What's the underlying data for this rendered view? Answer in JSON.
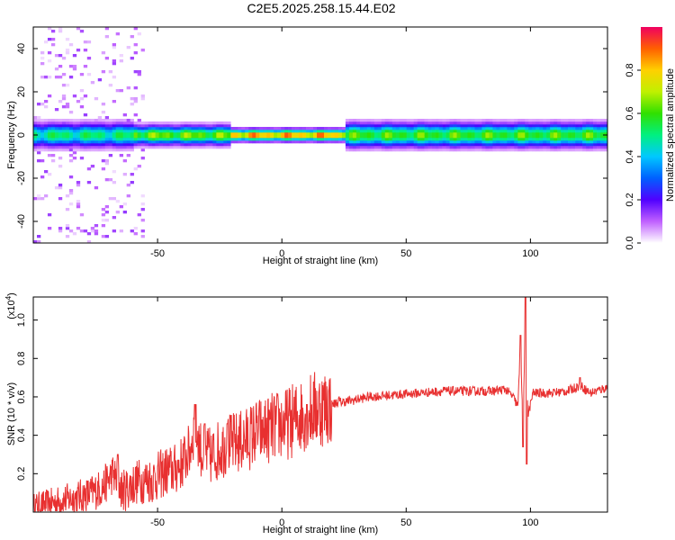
{
  "title": "C2E5.2025.258.15.44.E02",
  "chart_data": [
    {
      "type": "heatmap",
      "xlabel": "Height of straight line (km)",
      "ylabel": "Frequency (Hz)",
      "xlim": [
        -100,
        131
      ],
      "ylim": [
        -50,
        50
      ],
      "x_ticks": [
        "-50",
        "0",
        "50",
        "100"
      ],
      "y_ticks": [
        "-40",
        "-20",
        "0",
        "20",
        "40"
      ],
      "colorbar": {
        "label": "Normalized spectral amplitude",
        "range": [
          0,
          1
        ],
        "ticks": [
          "0.0",
          "0.2",
          "0.4",
          "0.6",
          "0.8"
        ],
        "colors": [
          "#ffffff",
          "#c060ff",
          "#5000ff",
          "#0060ff",
          "#00c8ff",
          "#00f080",
          "#30e000",
          "#c0f000",
          "#ffd000",
          "#ff6000",
          "#f00060"
        ]
      },
      "ridge": {
        "center_hz": 0,
        "segments": [
          {
            "x_start": -100,
            "x_end": -60,
            "half_width_hz": 5,
            "peak": 0.6
          },
          {
            "x_start": -60,
            "x_end": -20,
            "half_width_hz": 4,
            "peak": 0.75
          },
          {
            "x_start": -20,
            "x_end": 25,
            "half_width_hz": 2.5,
            "peak": 1.0
          },
          {
            "x_start": 25,
            "x_end": 131,
            "half_width_hz": 5,
            "peak": 0.7
          }
        ],
        "noise_region_x": [
          -100,
          -55
        ]
      }
    },
    {
      "type": "line",
      "xlabel": "Height of straight line (km)",
      "ylabel": "SNR (10 * v/v)",
      "y_scale_note": "(x10",
      "y_scale_exp": "4",
      "y_scale_close": ")",
      "xlim": [
        -100,
        131
      ],
      "ylim": [
        0,
        1.12
      ],
      "x_ticks": [
        "-50",
        "0",
        "50",
        "100"
      ],
      "y_ticks": [
        "0.2",
        "0.4",
        "0.6",
        "0.8",
        "1.0"
      ],
      "series": [
        {
          "color": "#e83030",
          "points": [
            [
              -100,
              0.03
            ],
            [
              -92,
              0.05
            ],
            [
              -85,
              0.07
            ],
            [
              -78,
              0.09
            ],
            [
              -72,
              0.13
            ],
            [
              -68,
              0.2
            ],
            [
              -64,
              0.11
            ],
            [
              -58,
              0.16
            ],
            [
              -52,
              0.17
            ],
            [
              -47,
              0.21
            ],
            [
              -43,
              0.22
            ],
            [
              -40,
              0.26
            ],
            [
              -37,
              0.32
            ],
            [
              -35,
              0.45
            ],
            [
              -32,
              0.3
            ],
            [
              -28,
              0.29
            ],
            [
              -25,
              0.33
            ],
            [
              -22,
              0.35
            ],
            [
              -18,
              0.36
            ],
            [
              -14,
              0.38
            ],
            [
              -10,
              0.42
            ],
            [
              -6,
              0.43
            ],
            [
              -2,
              0.45
            ],
            [
              2,
              0.46
            ],
            [
              6,
              0.49
            ],
            [
              10,
              0.52
            ],
            [
              14,
              0.54
            ],
            [
              18,
              0.55
            ],
            [
              22,
              0.57
            ],
            [
              28,
              0.58
            ],
            [
              35,
              0.6
            ],
            [
              45,
              0.61
            ],
            [
              55,
              0.62
            ],
            [
              65,
              0.63
            ],
            [
              75,
              0.63
            ],
            [
              85,
              0.63
            ],
            [
              90,
              0.64
            ],
            [
              93,
              0.6
            ],
            [
              95,
              0.55
            ],
            [
              96,
              0.9
            ],
            [
              97,
              0.4
            ],
            [
              98,
              1.1
            ],
            [
              99,
              0.5
            ],
            [
              101,
              0.62
            ],
            [
              108,
              0.62
            ],
            [
              115,
              0.63
            ],
            [
              120,
              0.66
            ],
            [
              124,
              0.62
            ],
            [
              131,
              0.65
            ]
          ],
          "spikes": [
            [
              -66,
              0.3
            ],
            [
              -35,
              0.56
            ],
            [
              -31,
              0.46
            ],
            [
              -28,
              0.26
            ],
            [
              -22,
              0.46
            ],
            [
              -8,
              0.48
            ],
            [
              10,
              0.56
            ],
            [
              23,
              0.6
            ],
            [
              96,
              0.92
            ],
            [
              97,
              0.34
            ],
            [
              98,
              1.12
            ],
            [
              98.5,
              0.25
            ],
            [
              120,
              0.7
            ]
          ]
        }
      ]
    }
  ]
}
